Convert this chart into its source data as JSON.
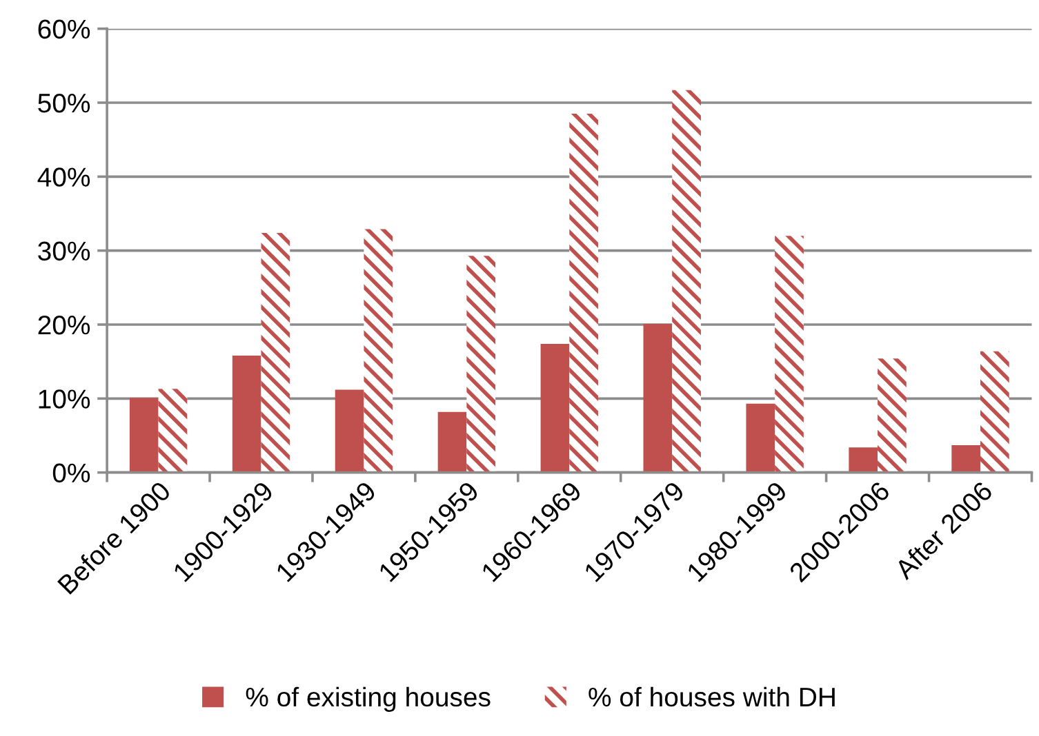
{
  "chart_data": {
    "type": "bar",
    "categories": [
      "Before 1900",
      "1900-1929",
      "1930-1949",
      "1950-1959",
      "1960-1969",
      "1970-1979",
      "1980-1999",
      "2000-2006",
      "After 2006"
    ],
    "series": [
      {
        "name": "% of existing houses",
        "color": "#c0504d",
        "values": [
          10.1,
          15.8,
          11.2,
          8.2,
          17.4,
          20.1,
          9.3,
          3.4,
          3.7
        ]
      },
      {
        "name": "% of houses with DH",
        "color": "#c0504d",
        "values": [
          11.3,
          32.4,
          32.9,
          29.3,
          48.5,
          51.7,
          32.0,
          15.4,
          16.4
        ]
      }
    ],
    "ylim": [
      0,
      60
    ],
    "yticks": [
      {
        "value": 0,
        "label": "0%"
      },
      {
        "value": 10,
        "label": "10%"
      },
      {
        "value": 20,
        "label": "20%"
      },
      {
        "value": 30,
        "label": "30%"
      },
      {
        "value": 40,
        "label": "40%"
      },
      {
        "value": 50,
        "label": "50%"
      },
      {
        "value": 60,
        "label": "60%"
      }
    ],
    "grid": "y",
    "legend": "bottom"
  }
}
